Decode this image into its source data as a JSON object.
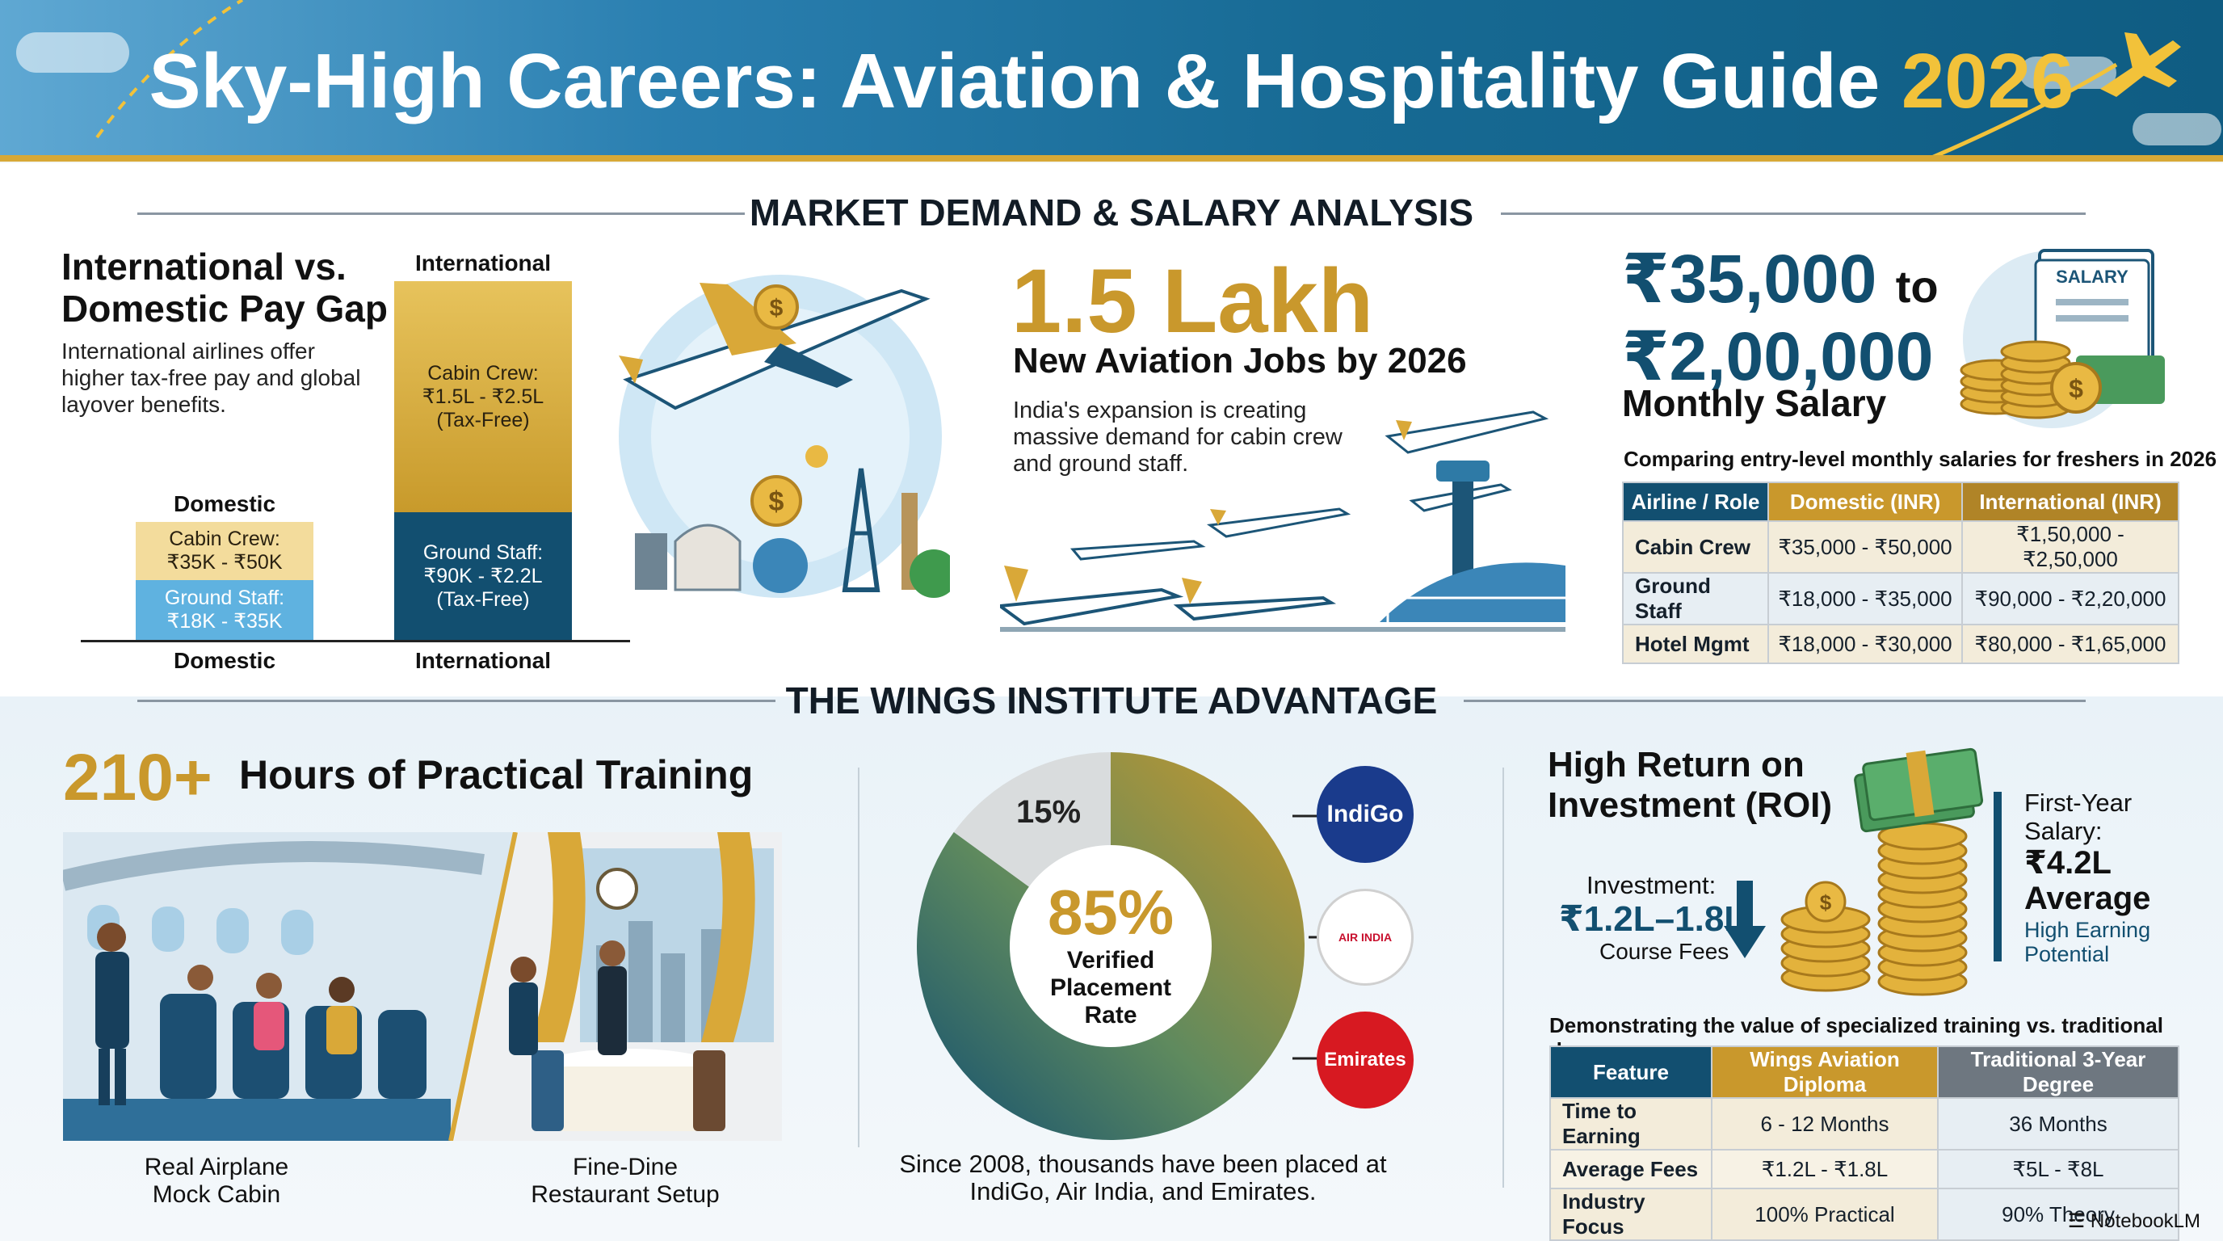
{
  "header": {
    "title": "Sky-High Careers: Aviation & Hospitality Guide",
    "year": "2026"
  },
  "market": {
    "section_title": "MARKET DEMAND & SALARY ANALYSIS",
    "pay_gap": {
      "title_line1": "International vs.",
      "title_line2": "Domestic Pay Gap",
      "description": "International airlines offer higher tax-free pay and global layover benefits.",
      "domestic_label": "Domestic",
      "international_label": "International",
      "domestic_cabin": "Cabin Crew:\n₹35K - ₹50K",
      "domestic_ground": "Ground Staff:\n₹18K - ₹35K",
      "international_cabin": "Cabin Crew:\n₹1.5L - ₹2.5L\n(Tax-Free)",
      "international_ground": "Ground Staff:\n₹90K - ₹2.2L\n(Tax-Free)"
    },
    "jobs": {
      "number": "1.5 Lakh",
      "headline": "New Aviation Jobs by 2026",
      "description": "India's expansion is creating massive demand for cabin crew and ground staff."
    },
    "salary": {
      "min": "₹35,000",
      "to": "to",
      "max": "₹2,00,000",
      "label": "Monthly Salary",
      "badge": "SALARY",
      "table_caption": "Comparing entry-level monthly salaries for freshers in 2026",
      "table_headers": [
        "Airline / Role",
        "Domestic (INR)",
        "International (INR)"
      ],
      "table_rows": [
        [
          "Cabin Crew",
          "₹35,000 - ₹50,000",
          "₹1,50,000 - ₹2,50,000"
        ],
        [
          "Ground Staff",
          "₹18,000 - ₹35,000",
          "₹90,000 - ₹2,20,000"
        ],
        [
          "Hotel Mgmt",
          "₹18,000 - ₹30,000",
          "₹80,000 - ₹1,65,000"
        ]
      ]
    }
  },
  "advantage": {
    "section_title": "THE WINGS INSTITUTE ADVANTAGE",
    "training": {
      "hours": "210+",
      "text": "Hours of Practical Training",
      "caption_left": "Real Airplane\nMock Cabin",
      "caption_right": "Fine-Dine\nRestaurant Setup"
    },
    "placement": {
      "rate": "85%",
      "rate_label": "Verified\nPlacement\nRate",
      "other": "15%",
      "note": "Since 2008, thousands have been placed at IndiGo, Air India, and Emirates.",
      "logos": [
        "IndiGo",
        "AIR INDIA",
        "Emirates"
      ]
    },
    "roi": {
      "title_line1": "High Return on",
      "title_line2": "Investment (ROI)",
      "investment_label": "Investment:",
      "investment_value": "₹1.2L–1.8L",
      "investment_sub": "Course Fees",
      "first_year_label": "First-Year\nSalary:",
      "first_year_value": "₹4.2L\nAverage",
      "first_year_sub": "High Earning\nPotential",
      "table_caption": "Demonstrating the value of specialized training vs. traditional degrees",
      "table_headers": [
        "Feature",
        "Wings Aviation Diploma",
        "Traditional 3-Year Degree"
      ],
      "table_rows": [
        [
          "Time to Earning",
          "6 - 12 Months",
          "36 Months"
        ],
        [
          "Average Fees",
          "₹1.2L - ₹1.8L",
          "₹5L - ₹8L"
        ],
        [
          "Industry Focus",
          "100% Practical",
          "90% Theory"
        ]
      ]
    }
  },
  "footer": {
    "brand": "NotebookLM"
  },
  "colors": {
    "teal": "#124f70",
    "gold": "#c9982c",
    "light_gold": "#f3dc9c",
    "sky": "#5fb2e0"
  },
  "chart_data": {
    "type": "pie",
    "categories": [
      "Placed",
      "Other"
    ],
    "values": [
      85,
      15
    ]
  }
}
